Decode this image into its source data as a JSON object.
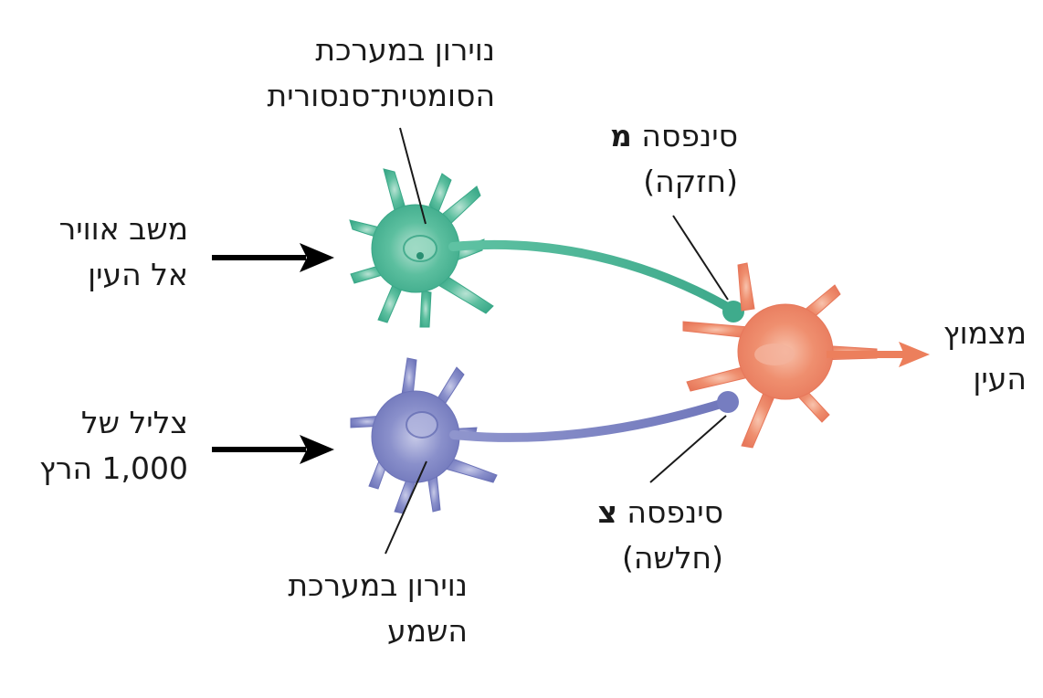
{
  "labels": {
    "somato_neuron": {
      "line1": "נוירון במערכת",
      "line2": "הסומטית־סנסורית"
    },
    "air_puff": {
      "line1": "משב אוויר",
      "line2": "אל העין"
    },
    "tone": {
      "line1": "צליל של",
      "line2": "1,000 הרץ"
    },
    "auditory_neuron": {
      "line1": "נוירון במערכת",
      "line2": "השמע"
    },
    "synapse_m": {
      "prefix": "סינפסה",
      "letter": "מ",
      "note": "(חזקה)"
    },
    "synapse_tz": {
      "prefix": "סינפסה",
      "letter": "צ",
      "note": "(חלשה)"
    },
    "eye_blink": {
      "line1": "מצמוץ",
      "line2": "העין"
    }
  },
  "colors": {
    "somato_neuron": "#4db89a",
    "auditory_neuron": "#7f86c4",
    "motor_neuron": "#ec8262",
    "arrows": "#000000",
    "output_arrow": "#ec7f5c"
  }
}
